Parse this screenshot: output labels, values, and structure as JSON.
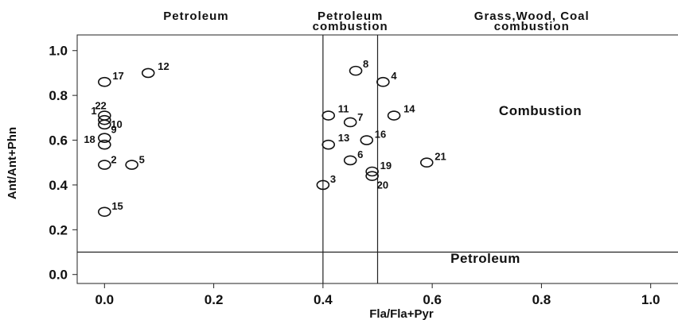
{
  "chart_data": {
    "type": "scatter",
    "xlabel": "Fla/Fla+Pyr",
    "ylabel": "Ant/Ant+Phn",
    "xlim": [
      -0.05,
      1.05
    ],
    "ylim": [
      -0.04,
      1.07
    ],
    "xticks": [
      0.0,
      0.2,
      0.4,
      0.6,
      0.8,
      1.0
    ],
    "xtick_labels": [
      "0.0",
      "0.2",
      "0.4",
      "0.6",
      "0.8",
      "1.0"
    ],
    "yticks": [
      0.0,
      0.2,
      0.4,
      0.6,
      0.8,
      1.0
    ],
    "ytick_labels": [
      "0.0",
      "0.2",
      "0.4",
      "0.6",
      "0.8",
      "1.0"
    ],
    "grid": false,
    "legend": false,
    "vertical_lines": [
      0.4,
      0.5
    ],
    "horizontal_lines": [
      0.1
    ],
    "region_labels": [
      {
        "lines": [
          "Petroleum"
        ]
      },
      {
        "lines": [
          "Petroleum",
          "combustion"
        ]
      },
      {
        "lines": [
          "Grass,Wood, Coal",
          "combustion"
        ]
      }
    ],
    "annotations": [
      "Combustion",
      "Petroleum"
    ],
    "points": [
      {
        "label": "1",
        "x": 0.0,
        "y": 0.69
      },
      {
        "label": "2",
        "x": 0.0,
        "y": 0.49
      },
      {
        "label": "3",
        "x": 0.4,
        "y": 0.4
      },
      {
        "label": "4",
        "x": 0.51,
        "y": 0.86
      },
      {
        "label": "5",
        "x": 0.05,
        "y": 0.49
      },
      {
        "label": "6",
        "x": 0.45,
        "y": 0.51
      },
      {
        "label": "7",
        "x": 0.45,
        "y": 0.68
      },
      {
        "label": "8",
        "x": 0.46,
        "y": 0.91
      },
      {
        "label": "9",
        "x": 0.0,
        "y": 0.61
      },
      {
        "label": "10",
        "x": 0.0,
        "y": 0.67
      },
      {
        "label": "11",
        "x": 0.41,
        "y": 0.71
      },
      {
        "label": "12",
        "x": 0.08,
        "y": 0.9
      },
      {
        "label": "13",
        "x": 0.41,
        "y": 0.58
      },
      {
        "label": "14",
        "x": 0.53,
        "y": 0.71
      },
      {
        "label": "15",
        "x": 0.0,
        "y": 0.28
      },
      {
        "label": "16",
        "x": 0.48,
        "y": 0.6
      },
      {
        "label": "17",
        "x": 0.0,
        "y": 0.86
      },
      {
        "label": "18",
        "x": 0.0,
        "y": 0.58
      },
      {
        "label": "19",
        "x": 0.49,
        "y": 0.46
      },
      {
        "label": "20",
        "x": 0.49,
        "y": 0.44
      },
      {
        "label": "21",
        "x": 0.59,
        "y": 0.5
      },
      {
        "label": "22",
        "x": 0.0,
        "y": 0.71
      }
    ]
  }
}
